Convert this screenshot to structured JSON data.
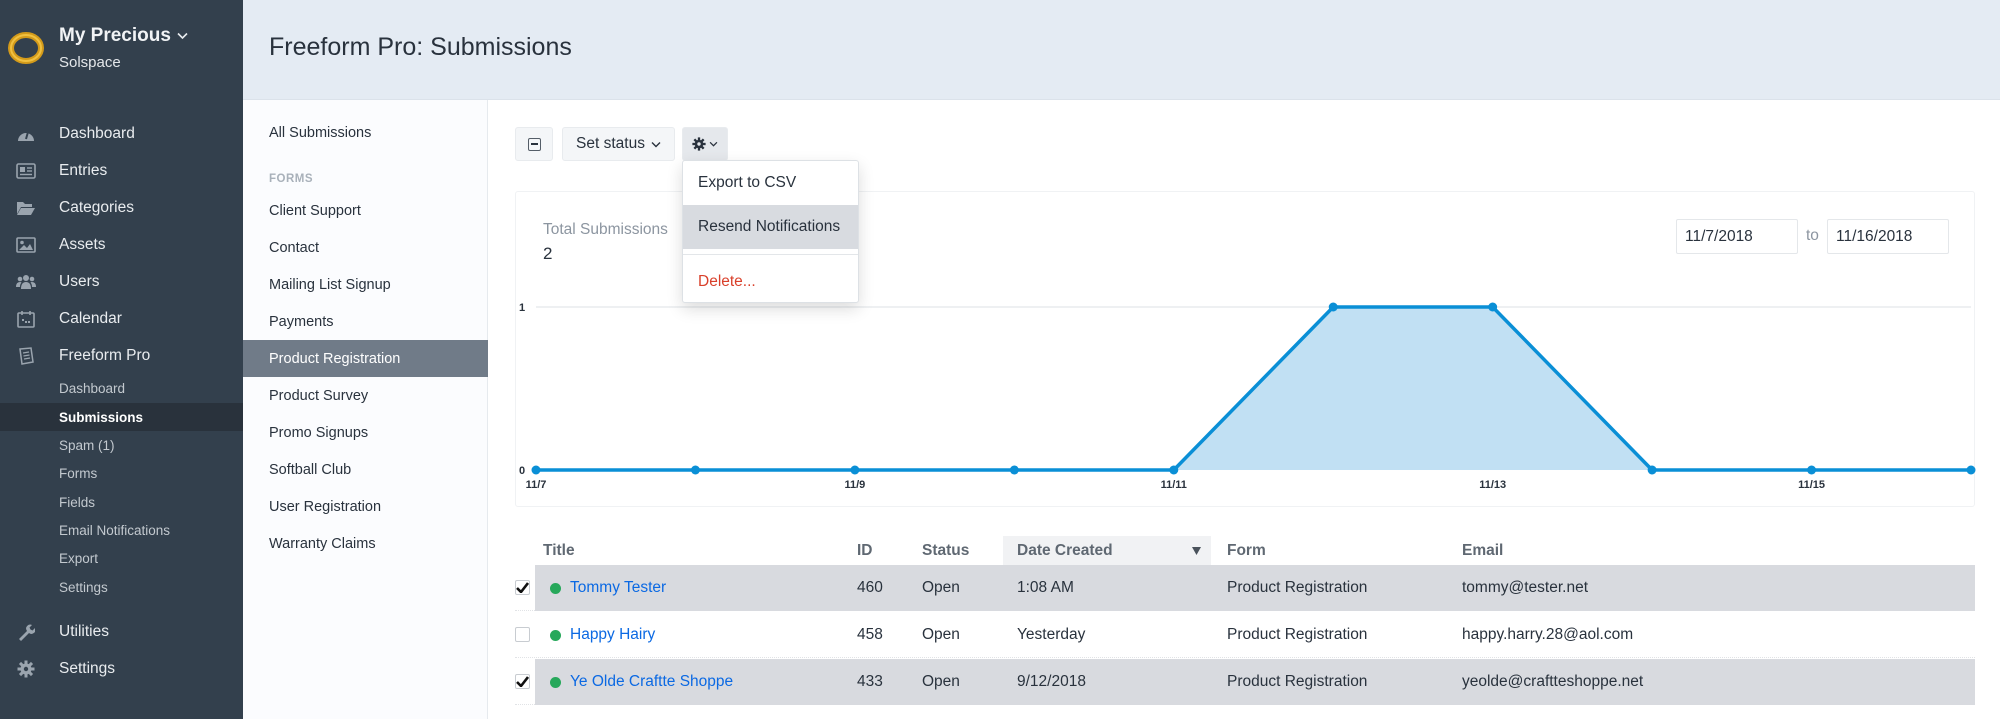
{
  "brand": {
    "site_name": "My Precious",
    "org": "Solspace"
  },
  "sidebar": {
    "items": [
      {
        "label": "Dashboard",
        "icon": "gauge-icon"
      },
      {
        "label": "Entries",
        "icon": "newspaper-icon"
      },
      {
        "label": "Categories",
        "icon": "folder-open-icon"
      },
      {
        "label": "Assets",
        "icon": "image-icon"
      },
      {
        "label": "Users",
        "icon": "users-icon"
      },
      {
        "label": "Calendar",
        "icon": "calendar-icon"
      },
      {
        "label": "Freeform Pro",
        "icon": "freeform-icon"
      }
    ],
    "freeform_subitems": [
      {
        "label": "Dashboard"
      },
      {
        "label": "Submissions",
        "active": true
      },
      {
        "label": "Spam (1)"
      },
      {
        "label": "Forms"
      },
      {
        "label": "Fields"
      },
      {
        "label": "Email Notifications"
      },
      {
        "label": "Export"
      },
      {
        "label": "Settings"
      }
    ],
    "bottom_items": [
      {
        "label": "Utilities",
        "icon": "wrench-icon"
      },
      {
        "label": "Settings",
        "icon": "gear-icon"
      }
    ]
  },
  "header": {
    "title": "Freeform Pro: Submissions"
  },
  "subnav": {
    "all_label": "All Submissions",
    "forms_heading": "FORMS",
    "forms": [
      "Client Support",
      "Contact",
      "Mailing List Signup",
      "Payments",
      "Product Registration",
      "Product Survey",
      "Promo Signups",
      "Softball Club",
      "User Registration",
      "Warranty Claims"
    ],
    "active_form": "Product Registration"
  },
  "toolbar": {
    "set_status_label": "Set status",
    "gear_menu": {
      "items": [
        {
          "label": "Export to CSV"
        },
        {
          "label": "Resend Notifications",
          "hovered": true
        },
        {
          "label": "Delete...",
          "danger": true
        }
      ]
    }
  },
  "stats": {
    "total_label": "Total Submissions",
    "total_value": "2",
    "date_from": "11/7/2018",
    "date_to_label": "to",
    "date_to": "11/16/2018"
  },
  "chart_data": {
    "type": "area",
    "title": "Total Submissions",
    "x": [
      "11/7",
      "11/8",
      "11/9",
      "11/10",
      "11/11",
      "11/12",
      "11/13",
      "11/14",
      "11/15",
      "11/16"
    ],
    "x_tick_labels": [
      "11/7",
      "11/9",
      "11/11",
      "11/13",
      "11/15"
    ],
    "series": [
      {
        "name": "Submissions",
        "values": [
          0,
          0,
          0,
          0,
          0,
          1,
          1,
          0,
          0,
          0
        ],
        "color": "#0a8fd6",
        "fill": "#c1e0f3"
      }
    ],
    "y_ticks": [
      0,
      1
    ],
    "ylim": [
      0,
      1
    ],
    "xlabel": "",
    "ylabel": "",
    "grid": true,
    "legend": false
  },
  "table": {
    "columns": [
      "Title",
      "ID",
      "Status",
      "Date Created",
      "Form",
      "Email"
    ],
    "sort_column": "Date Created",
    "sort_icon": "sort-desc-icon",
    "rows": [
      {
        "checked": true,
        "title": "Tommy Tester",
        "id": "460",
        "status": "Open",
        "date": "1:08 AM",
        "form": "Product Registration",
        "email": "tommy@tester.net"
      },
      {
        "checked": false,
        "title": "Happy Hairy",
        "id": "458",
        "status": "Open",
        "date": "Yesterday",
        "form": "Product Registration",
        "email": "happy.harry.28@aol.com"
      },
      {
        "checked": true,
        "title": "Ye Olde Craftte Shoppe",
        "id": "433",
        "status": "Open",
        "date": "9/12/2018",
        "form": "Product Registration",
        "email": "yeolde@craftteshoppe.net"
      }
    ]
  },
  "colors": {
    "sidebar_bg": "#33404d",
    "header_bg": "#e4ebf3",
    "link": "#0b69e3",
    "status_open": "#27a85b",
    "danger": "#d9402b",
    "chart_line": "#0a8fd6",
    "chart_fill": "#c1e0f3"
  }
}
